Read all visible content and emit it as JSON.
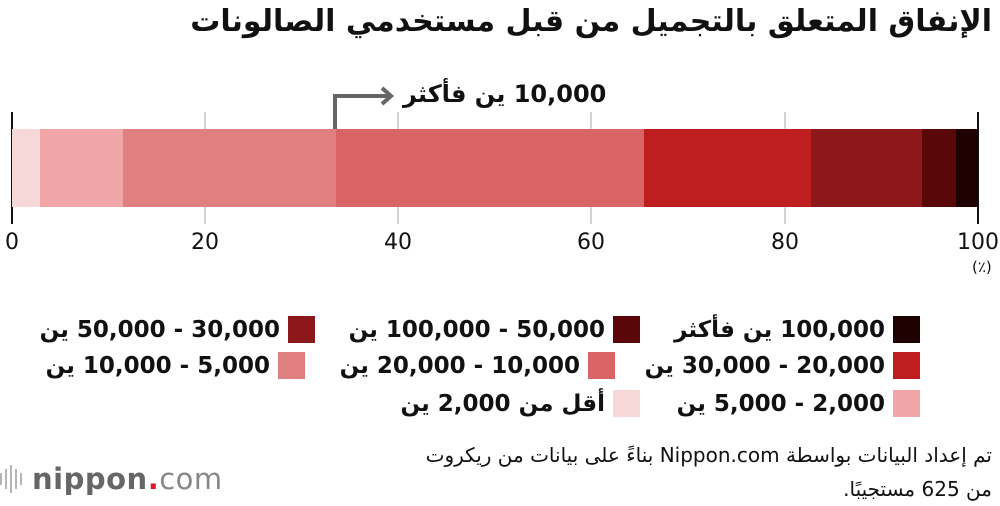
{
  "title": "الإنفاق المتعلق بالتجميل من قبل مستخدمي الصالونات",
  "callout": {
    "label": "10,000 ين فأكثر",
    "arrow_start_percent": 33.5
  },
  "axis": {
    "ticks": [
      "0",
      "20",
      "40",
      "60",
      "80",
      "100"
    ],
    "unit": "(٪)"
  },
  "legend": [
    {
      "label": "100,000 ين فأكثر",
      "color": "#1e0202"
    },
    {
      "label": "50,000 - 100,000 ين",
      "color": "#5a0709"
    },
    {
      "label": "30,000 - 50,000 ين",
      "color": "#8c181b"
    },
    {
      "label": "20,000 - 30,000 ين",
      "color": "#be1e20"
    },
    {
      "label": "10,000 - 20,000 ين",
      "color": "#d96466"
    },
    {
      "label": "5,000 - 10,000 ين",
      "color": "#e07f80"
    },
    {
      "label": "2,000 - 5,000 ين",
      "color": "#f0a6a7"
    },
    {
      "label": "أقل من 2,000 ين",
      "color": "#f7d8d8"
    }
  ],
  "source": {
    "line1": "تم إعداد البيانات بواسطة Nippon.com بناءً على بيانات من ريكروت",
    "line2": "من 625 مستجيبًا."
  },
  "logo": {
    "name": "nippon",
    "dot": ".",
    "suffix": "com"
  },
  "chart_data": {
    "type": "bar",
    "orientation": "horizontal-stacked-100",
    "title": "الإنفاق المتعلق بالتجميل من قبل مستخدمي الصالونات",
    "xlabel": "(٪)",
    "ylabel": "",
    "xlim": [
      0,
      100
    ],
    "xticks": [
      0,
      20,
      40,
      60,
      80,
      100
    ],
    "grid": true,
    "legend_position": "bottom",
    "annotation": "10,000 ين فأكثر (arrow pointing from 33.5% toward 100%)",
    "series": [
      {
        "name": "أقل من 2,000 ين",
        "value": 2.9,
        "color": "#f7d8d8"
      },
      {
        "name": "2,000 - 5,000 ين",
        "value": 8.6,
        "color": "#f0a6a7"
      },
      {
        "name": "5,000 - 10,000 ين",
        "value": 22.0,
        "color": "#e07f80"
      },
      {
        "name": "10,000 - 20,000 ين",
        "value": 31.9,
        "color": "#d96466"
      },
      {
        "name": "20,000 - 30,000 ين",
        "value": 17.3,
        "color": "#be1e20"
      },
      {
        "name": "30,000 - 50,000 ين",
        "value": 11.5,
        "color": "#8c181b"
      },
      {
        "name": "50,000 - 100,000 ين",
        "value": 3.5,
        "color": "#5a0709"
      },
      {
        "name": "100,000 ين فأكثر",
        "value": 2.3,
        "color": "#1e0202"
      }
    ]
  }
}
